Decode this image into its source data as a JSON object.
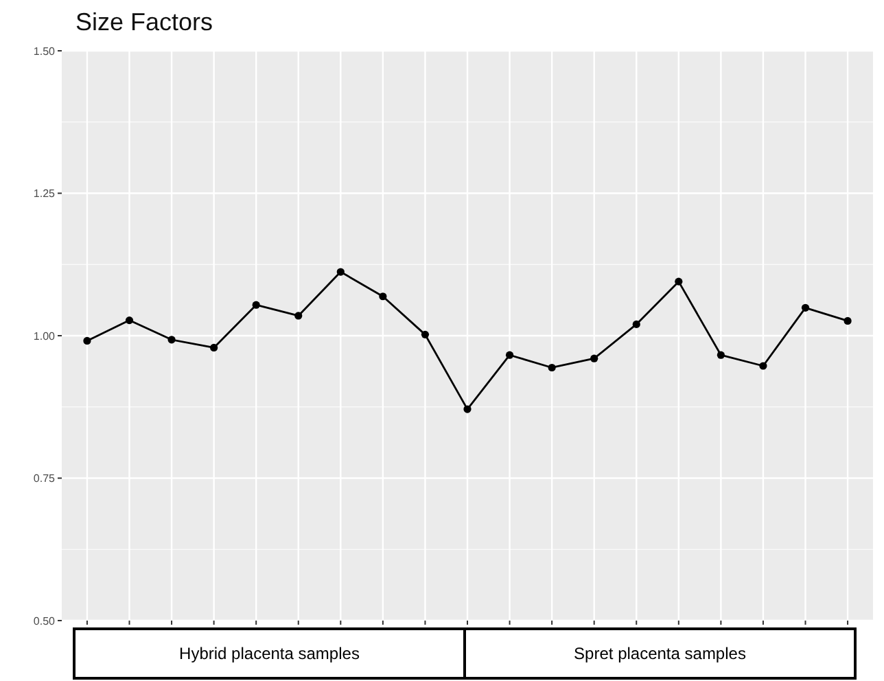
{
  "chart_data": {
    "type": "line",
    "title": "Size Factors",
    "categories": [
      null,
      null,
      null,
      null,
      null,
      null,
      null,
      null,
      null,
      null,
      null,
      null,
      null,
      null,
      null,
      null,
      null,
      null,
      null
    ],
    "series": [
      {
        "color": "#000000",
        "values": [
          0.991,
          1.027,
          0.993,
          0.979,
          1.054,
          1.035,
          1.112,
          1.069,
          1.002,
          0.871,
          0.966,
          0.944,
          0.96,
          1.02,
          1.095,
          0.966,
          0.947,
          1.049,
          1.026
        ]
      }
    ],
    "ylim": [
      0.5,
      1.5
    ],
    "yticks": [
      {
        "value": 0.5,
        "label": "0.50"
      },
      {
        "value": 0.75,
        "label": "0.75"
      },
      {
        "value": 1,
        "label": "1.00"
      },
      {
        "value": 1.25,
        "label": "1.25"
      },
      {
        "value": 1.5,
        "label": "1.50"
      }
    ],
    "grid": true,
    "marker": "circle",
    "line_style": "solid",
    "annotations": [
      "Hybrid placenta samples",
      "Spret placenta samples"
    ]
  }
}
